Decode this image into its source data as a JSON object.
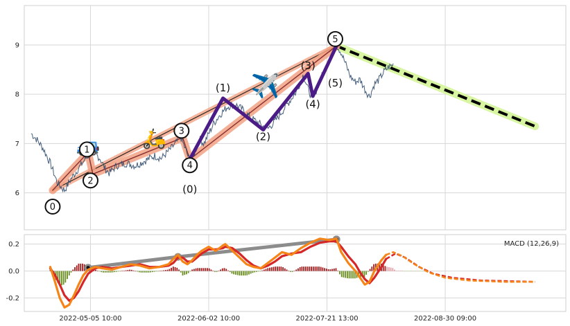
{
  "chart_data": [
    {
      "type": "line",
      "panel": "price",
      "y_ticks": [
        6,
        7,
        8,
        9
      ],
      "ylim": [
        5.25,
        9.8
      ],
      "grid": true,
      "x_tick_labels": [
        "2022-05-05 10:00",
        "2022-06-02 10:00",
        "2022-07-21 13:00",
        "2022-08-30 09:00"
      ],
      "price_path": [
        [
          0,
          7.2
        ],
        [
          2,
          7.1
        ],
        [
          5,
          6.9
        ],
        [
          8,
          6.6
        ],
        [
          11,
          6.2
        ],
        [
          14,
          6.05
        ],
        [
          17,
          6.3
        ],
        [
          20,
          6.5
        ],
        [
          23,
          6.7
        ],
        [
          26,
          6.85
        ],
        [
          29,
          6.7
        ],
        [
          31,
          6.5
        ],
        [
          33,
          6.4
        ],
        [
          36,
          6.55
        ],
        [
          40,
          6.6
        ],
        [
          44,
          6.55
        ],
        [
          48,
          6.65
        ],
        [
          52,
          6.75
        ],
        [
          55,
          6.7
        ],
        [
          58,
          6.85
        ],
        [
          61,
          7.0
        ],
        [
          63,
          7.15
        ],
        [
          65,
          6.9
        ],
        [
          67,
          6.65
        ],
        [
          69,
          6.8
        ],
        [
          71,
          7.1
        ],
        [
          73,
          7.0
        ],
        [
          75,
          7.2
        ],
        [
          77,
          7.4
        ],
        [
          80,
          7.6
        ],
        [
          83,
          7.75
        ],
        [
          86,
          7.8
        ],
        [
          89,
          7.7
        ],
        [
          92,
          7.55
        ],
        [
          95,
          7.45
        ],
        [
          98,
          7.35
        ],
        [
          100,
          7.3
        ],
        [
          103,
          7.45
        ],
        [
          106,
          7.65
        ],
        [
          109,
          7.85
        ],
        [
          112,
          8.05
        ],
        [
          115,
          8.4
        ],
        [
          117,
          8.1
        ],
        [
          119,
          7.9
        ],
        [
          121,
          8.15
        ],
        [
          124,
          8.5
        ],
        [
          127,
          8.8
        ],
        [
          129,
          9.0
        ],
        [
          131,
          8.85
        ],
        [
          133,
          8.6
        ],
        [
          135,
          8.35
        ],
        [
          137,
          8.25
        ],
        [
          139,
          8.3
        ],
        [
          141,
          8.1
        ],
        [
          143,
          7.95
        ],
        [
          145,
          8.2
        ],
        [
          147,
          8.3
        ],
        [
          149,
          8.45
        ],
        [
          151,
          8.55
        ],
        [
          153,
          8.6
        ]
      ],
      "wave_labels": [
        {
          "text": "0",
          "x": 9,
          "y": 5.72,
          "circled": true
        },
        {
          "text": "1",
          "x": 23.5,
          "y": 6.88,
          "circled": true
        },
        {
          "text": "2",
          "x": 25,
          "y": 6.25,
          "circled": true
        },
        {
          "text": "3",
          "x": 63.5,
          "y": 7.26,
          "circled": true
        },
        {
          "text": "4",
          "x": 67,
          "y": 6.56,
          "circled": true
        },
        {
          "text": "5",
          "x": 128.5,
          "y": 9.12,
          "circled": true
        },
        {
          "text": "(0)",
          "x": 67,
          "y": 6.07,
          "circled": false
        },
        {
          "text": "(1)",
          "x": 81,
          "y": 8.13,
          "circled": false
        },
        {
          "text": "(2)",
          "x": 98,
          "y": 7.14,
          "circled": false
        },
        {
          "text": "(3)",
          "x": 117,
          "y": 8.58,
          "circled": false
        },
        {
          "text": "(4)",
          "x": 119,
          "y": 7.8,
          "circled": false
        },
        {
          "text": "(5)",
          "x": 128.5,
          "y": 8.23,
          "circled": false
        }
      ],
      "subwave_path": [
        [
          9,
          6.05
        ],
        [
          24,
          6.82
        ],
        [
          26,
          6.38
        ],
        [
          64,
          7.12
        ],
        [
          67,
          6.68
        ],
        [
          129,
          8.98
        ]
      ],
      "impulse_path": [
        [
          67,
          6.68
        ],
        [
          81,
          7.92
        ],
        [
          98,
          7.28
        ],
        [
          117,
          8.42
        ],
        [
          119,
          7.96
        ],
        [
          129,
          8.98
        ]
      ],
      "trend_line": [
        [
          9,
          6.05
        ],
        [
          129,
          8.98
        ]
      ],
      "forecast_line": [
        [
          129,
          8.98
        ],
        [
          213,
          7.35
        ]
      ],
      "icons": [
        {
          "name": "car",
          "glyph": "🚙",
          "x": 24,
          "y": 6.95
        },
        {
          "name": "scooter",
          "glyph": "🛵",
          "x": 52,
          "y": 7.08
        },
        {
          "name": "airplane",
          "glyph": "✈️",
          "x": 99,
          "y": 8.14
        }
      ]
    },
    {
      "type": "line",
      "panel": "macd",
      "legend": "MACD (12,26,9)",
      "y_ticks": [
        -0.2,
        0.0,
        0.2
      ],
      "ylim": [
        -0.3,
        0.27
      ],
      "grid": true,
      "macd_line": [
        [
          8,
          0.03
        ],
        [
          10,
          -0.08
        ],
        [
          12,
          -0.2
        ],
        [
          14,
          -0.27
        ],
        [
          16,
          -0.25
        ],
        [
          18,
          -0.18
        ],
        [
          20,
          -0.1
        ],
        [
          22,
          -0.03
        ],
        [
          24,
          0.01
        ],
        [
          27,
          0.03
        ],
        [
          30,
          0.02
        ],
        [
          34,
          0.01
        ],
        [
          38,
          0.03
        ],
        [
          42,
          0.05
        ],
        [
          46,
          0.04
        ],
        [
          50,
          0.02
        ],
        [
          54,
          0.03
        ],
        [
          58,
          0.05
        ],
        [
          60,
          0.09
        ],
        [
          62,
          0.12
        ],
        [
          64,
          0.07
        ],
        [
          66,
          0.05
        ],
        [
          68,
          0.08
        ],
        [
          70,
          0.12
        ],
        [
          72,
          0.15
        ],
        [
          75,
          0.18
        ],
        [
          78,
          0.15
        ],
        [
          81,
          0.19
        ],
        [
          82,
          0.2
        ],
        [
          85,
          0.15
        ],
        [
          88,
          0.1
        ],
        [
          91,
          0.05
        ],
        [
          94,
          0.03
        ],
        [
          97,
          0.02
        ],
        [
          100,
          0.06
        ],
        [
          103,
          0.1
        ],
        [
          106,
          0.14
        ],
        [
          110,
          0.12
        ],
        [
          114,
          0.17
        ],
        [
          118,
          0.21
        ],
        [
          122,
          0.24
        ],
        [
          126,
          0.23
        ],
        [
          129,
          0.24
        ],
        [
          131,
          0.14
        ],
        [
          134,
          0.06
        ],
        [
          137,
          0.0
        ],
        [
          139,
          -0.05
        ],
        [
          141,
          -0.1
        ],
        [
          143,
          -0.08
        ],
        [
          145,
          0.0
        ],
        [
          148,
          0.08
        ],
        [
          150,
          0.12
        ]
      ],
      "signal_line": [
        [
          8,
          0.02
        ],
        [
          10,
          -0.03
        ],
        [
          12,
          -0.1
        ],
        [
          14,
          -0.18
        ],
        [
          16,
          -0.22
        ],
        [
          18,
          -0.2
        ],
        [
          20,
          -0.15
        ],
        [
          22,
          -0.08
        ],
        [
          24,
          -0.02
        ],
        [
          27,
          0.02
        ],
        [
          30,
          0.03
        ],
        [
          34,
          0.02
        ],
        [
          38,
          0.03
        ],
        [
          42,
          0.04
        ],
        [
          46,
          0.05
        ],
        [
          50,
          0.03
        ],
        [
          54,
          0.03
        ],
        [
          58,
          0.04
        ],
        [
          60,
          0.06
        ],
        [
          62,
          0.1
        ],
        [
          64,
          0.1
        ],
        [
          66,
          0.07
        ],
        [
          68,
          0.07
        ],
        [
          70,
          0.1
        ],
        [
          72,
          0.13
        ],
        [
          75,
          0.16
        ],
        [
          78,
          0.16
        ],
        [
          81,
          0.17
        ],
        [
          82,
          0.18
        ],
        [
          85,
          0.17
        ],
        [
          88,
          0.13
        ],
        [
          91,
          0.08
        ],
        [
          94,
          0.04
        ],
        [
          97,
          0.02
        ],
        [
          100,
          0.04
        ],
        [
          103,
          0.07
        ],
        [
          106,
          0.11
        ],
        [
          110,
          0.13
        ],
        [
          114,
          0.14
        ],
        [
          118,
          0.18
        ],
        [
          122,
          0.21
        ],
        [
          126,
          0.22
        ],
        [
          129,
          0.22
        ],
        [
          131,
          0.18
        ],
        [
          134,
          0.11
        ],
        [
          137,
          0.05
        ],
        [
          139,
          -0.01
        ],
        [
          141,
          -0.06
        ],
        [
          143,
          -0.09
        ],
        [
          145,
          -0.05
        ],
        [
          148,
          0.03
        ],
        [
          150,
          0.09
        ]
      ],
      "macd_forecast": [
        [
          150,
          0.12
        ],
        [
          153,
          0.14
        ],
        [
          157,
          0.11
        ],
        [
          162,
          0.05
        ],
        [
          168,
          -0.01
        ],
        [
          175,
          -0.05
        ],
        [
          185,
          -0.07
        ],
        [
          200,
          -0.08
        ],
        [
          213,
          -0.08
        ]
      ],
      "signal_forecast": [
        [
          150,
          0.09
        ],
        [
          154,
          0.13
        ],
        [
          158,
          0.1
        ],
        [
          164,
          0.03
        ],
        [
          170,
          -0.02
        ],
        [
          178,
          -0.05
        ],
        [
          190,
          -0.07
        ],
        [
          213,
          -0.08
        ]
      ],
      "divergence_line": [
        [
          24,
          0.025
        ],
        [
          62,
          0.105
        ],
        [
          129,
          0.235
        ]
      ],
      "histogram": {
        "x_start": 8,
        "x_end": 168,
        "step": 0.8
      },
      "colors": {
        "macd": "#f58518",
        "signal": "#d62728",
        "hist_pos": "#a11d1d",
        "hist_neg": "#6b8e23",
        "hist_forecast_pos": "#e8a0a8",
        "hist_forecast_neg": "#b8d28a"
      }
    }
  ]
}
